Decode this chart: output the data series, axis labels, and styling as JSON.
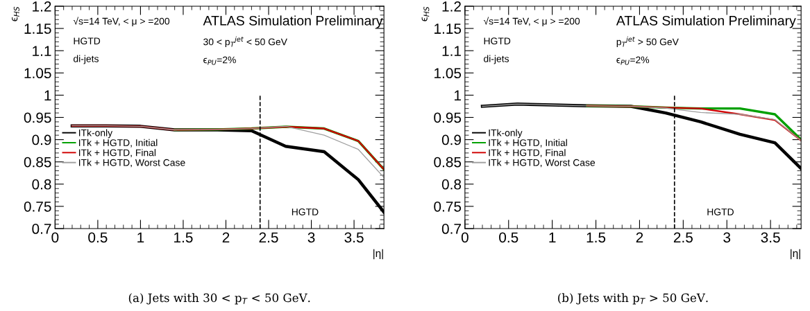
{
  "chart_data": [
    {
      "type": "line",
      "ylabel": "ϵ$_{HS}$",
      "xlabel": "|η|",
      "x": [
        0.2,
        0.6,
        1.0,
        1.4,
        1.9,
        2.3,
        2.7,
        3.15,
        3.55,
        3.85
      ],
      "xlim": [
        0,
        3.85
      ],
      "xticks": [
        0,
        0.5,
        1,
        1.5,
        2,
        2.5,
        3,
        3.5
      ],
      "ylim": [
        0.7,
        1.2
      ],
      "yticks": [
        0.7,
        0.75,
        0.8,
        0.85,
        0.9,
        0.95,
        1,
        1.05,
        1.1,
        1.15,
        1.2
      ],
      "legend": "left",
      "grid": false,
      "line_style": "solid",
      "marker": "none",
      "series": [
        {
          "name": "ITk-only",
          "color": "#000000",
          "values": [
            0.931,
            0.931,
            0.93,
            0.922,
            0.922,
            0.92,
            0.885,
            0.873,
            0.81,
            0.737
          ]
        },
        {
          "name": "ITk + HGTD, Initial",
          "color": "#00a000",
          "values": [
            null,
            null,
            null,
            0.922,
            0.923,
            0.925,
            0.929,
            0.925,
            0.897,
            0.833
          ]
        },
        {
          "name": "ITk + HGTD, Final",
          "color": "#d00000",
          "values": [
            0.931,
            0.931,
            0.93,
            0.922,
            0.923,
            0.925,
            0.929,
            0.925,
            0.897,
            0.833
          ]
        },
        {
          "name": "ITk + HGTD, Worst Case",
          "color": "#a0a0a0",
          "values": [
            0.931,
            0.931,
            0.93,
            0.922,
            0.923,
            0.925,
            0.93,
            0.91,
            0.878,
            0.815
          ]
        }
      ],
      "ref_lines": [
        {
          "axis": "x",
          "value": 2.4,
          "line_style": "dashed",
          "color": "#000000"
        }
      ],
      "annotations": [
        "√s=14 TeV, < μ > =200",
        "HGTD",
        "di-jets",
        "ATLAS Simulation Preliminary",
        "30 < p$_{T}$$^{jet}$ < 50 GeV",
        "ϵ$_{PU}$=2%",
        "(a) Jets with 30 < p$_{T}$ < 50 GeV.",
        "HGTD"
      ]
    },
    {
      "type": "line",
      "ylabel": "ϵ$_{HS}$",
      "xlabel": "|η|",
      "x": [
        0.2,
        0.6,
        1.0,
        1.4,
        1.9,
        2.3,
        2.7,
        3.15,
        3.55,
        3.85
      ],
      "xlim": [
        0,
        3.85
      ],
      "xticks": [
        0,
        0.5,
        1,
        1.5,
        2,
        2.5,
        3,
        3.5
      ],
      "ylim": [
        0.7,
        1.2
      ],
      "yticks": [
        0.7,
        0.75,
        0.8,
        0.85,
        0.9,
        0.95,
        1,
        1.05,
        1.1,
        1.15,
        1.2
      ],
      "legend": "left",
      "grid": false,
      "line_style": "solid",
      "marker": "none",
      "series": [
        {
          "name": "ITk-only",
          "color": "#000000",
          "values": [
            0.975,
            0.98,
            0.978,
            0.976,
            0.975,
            0.96,
            0.94,
            0.912,
            0.893,
            0.835
          ]
        },
        {
          "name": "ITk + HGTD, Initial",
          "color": "#00a000",
          "values": [
            null,
            null,
            null,
            0.976,
            0.975,
            0.972,
            0.97,
            0.97,
            0.957,
            0.9
          ]
        },
        {
          "name": "ITk + HGTD, Final",
          "color": "#d00000",
          "values": [
            null,
            null,
            null,
            0.976,
            0.975,
            0.972,
            0.97,
            0.957,
            0.944,
            0.898
          ]
        },
        {
          "name": "ITk + HGTD, Worst Case",
          "color": "#a0a0a0",
          "values": [
            0.975,
            0.98,
            0.978,
            0.976,
            0.975,
            0.971,
            0.961,
            0.957,
            0.945,
            0.898
          ]
        }
      ],
      "ref_lines": [
        {
          "axis": "x",
          "value": 2.4,
          "line_style": "dashed",
          "color": "#000000"
        }
      ],
      "annotations": [
        "√s=14 TeV, < μ > =200",
        "HGTD",
        "di-jets",
        "ATLAS Simulation Preliminary",
        "p$_{T}$$^{jet}$ > 50 GeV",
        "ϵ$_{PU}$=2%",
        "(b) Jets with p$_{T}$ > 50 GeV.",
        "HGTD"
      ]
    }
  ]
}
